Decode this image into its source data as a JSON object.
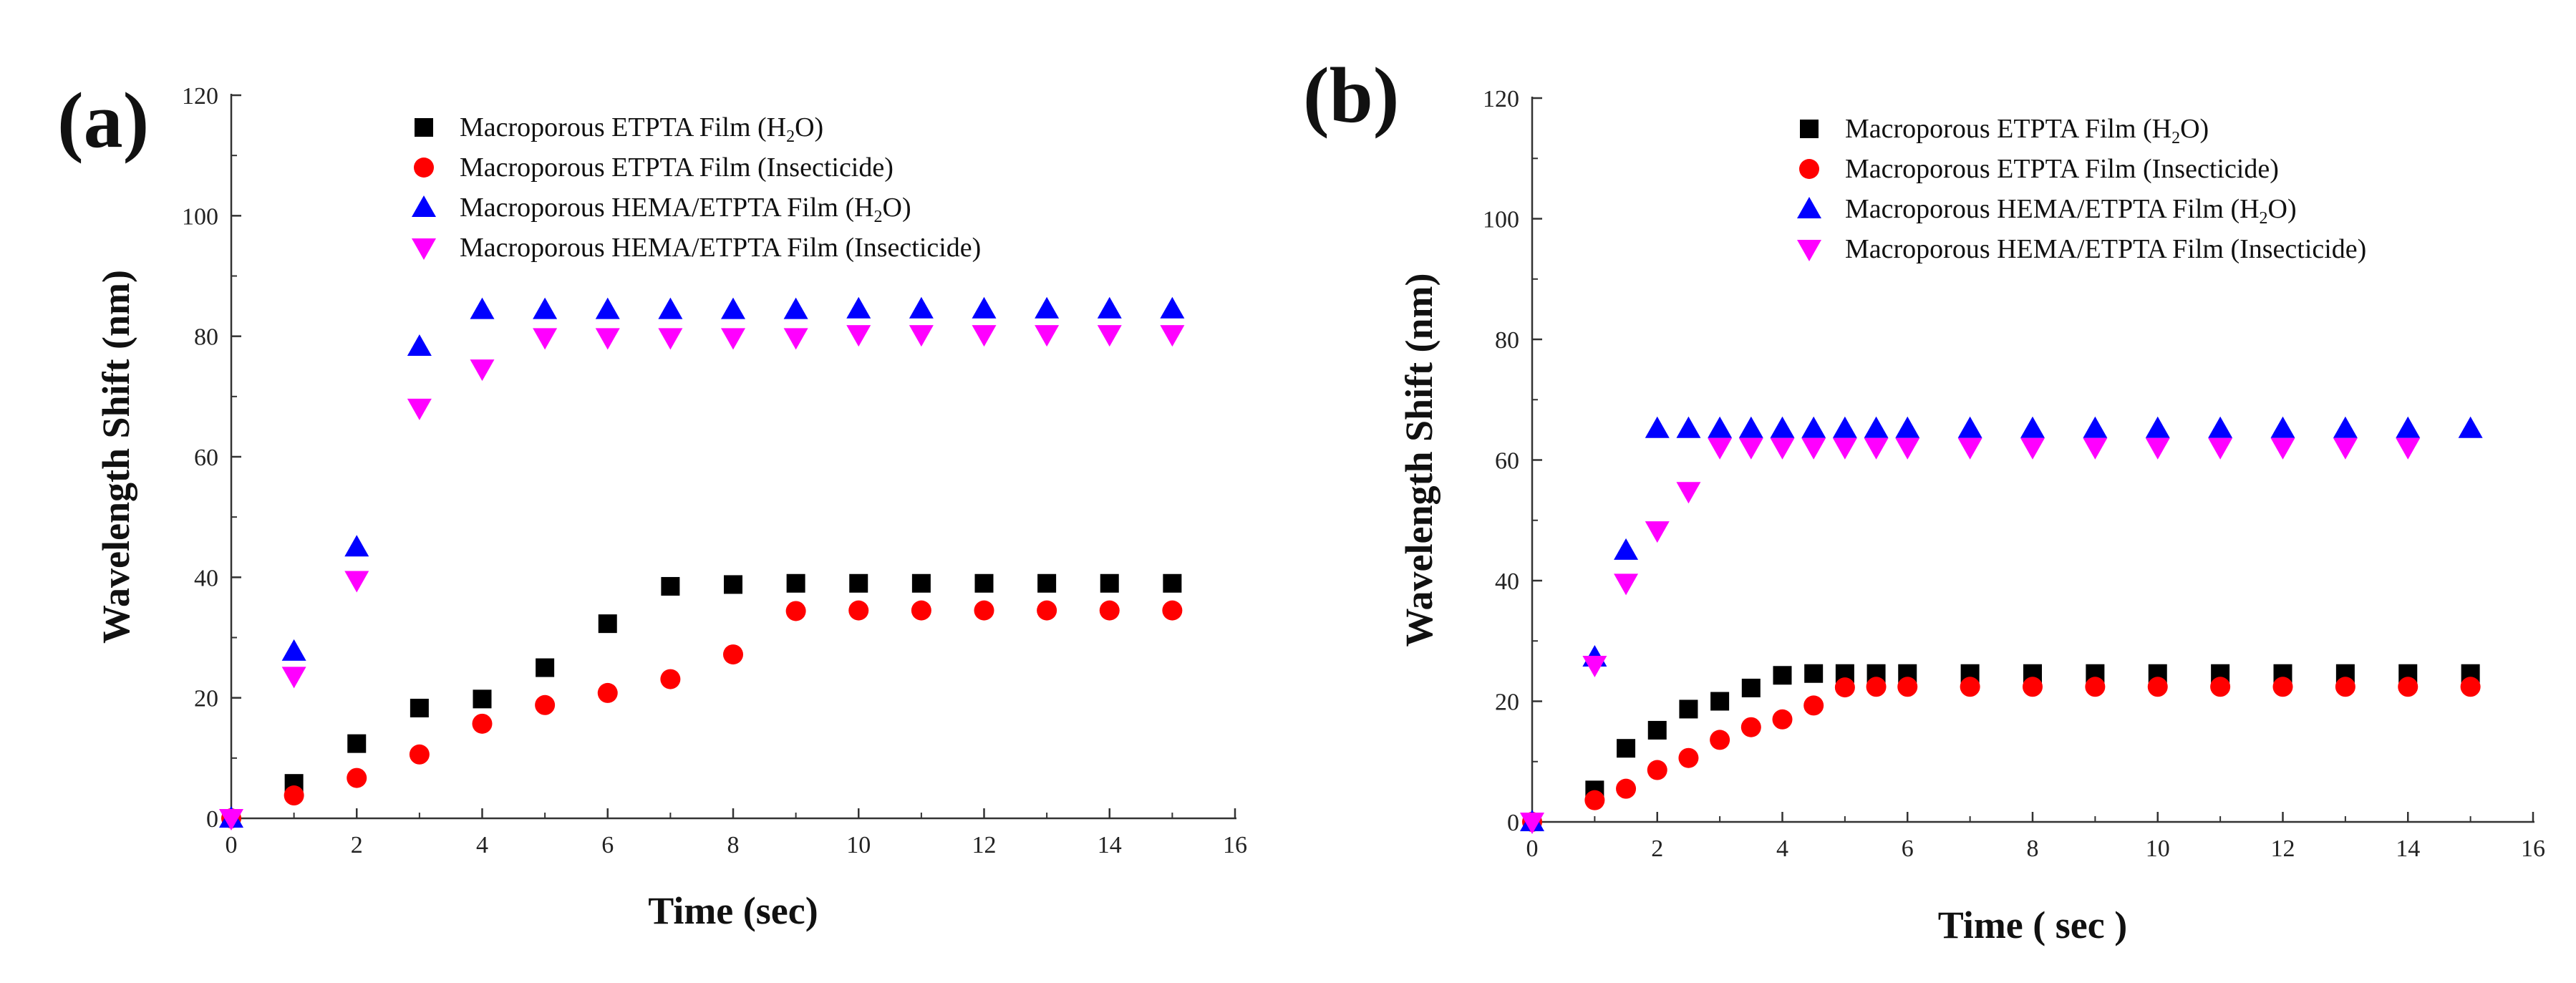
{
  "chart_data": [
    {
      "type": "scatter",
      "panel_label": "(a)",
      "xlabel": "Time (sec)",
      "ylabel": "Wavelength Shift (nm)",
      "xlim": [
        0,
        16
      ],
      "ylim": [
        0,
        120
      ],
      "xticks": [
        0,
        2,
        4,
        6,
        8,
        10,
        12,
        14,
        16
      ],
      "yticks": [
        0,
        20,
        40,
        60,
        80,
        100,
        120
      ],
      "legend_position": "top-right",
      "series": [
        {
          "name": "Macroporous ETPTA Film (H₂O)",
          "marker": "square",
          "color": "#000000",
          "x": [
            0,
            1,
            2,
            3,
            4,
            5,
            6,
            7,
            8,
            9,
            10,
            11,
            12,
            13,
            14,
            15
          ],
          "y": [
            0,
            5.8,
            12.4,
            18.3,
            19.8,
            25,
            32.3,
            38.5,
            38.8,
            39,
            39,
            39,
            39,
            39,
            39,
            39
          ]
        },
        {
          "name": "Macroporous ETPTA Film (Insecticide)",
          "marker": "circle",
          "color": "#ff0000",
          "x": [
            0,
            1,
            2,
            3,
            4,
            5,
            6,
            7,
            8,
            9,
            10,
            11,
            12,
            13,
            14,
            15
          ],
          "y": [
            0,
            3.8,
            6.7,
            10.6,
            15.7,
            18.8,
            20.8,
            23.1,
            27.2,
            34.4,
            34.5,
            34.5,
            34.5,
            34.5,
            34.5,
            34.5
          ]
        },
        {
          "name": "Macroporous HEMA/ETPTA Film (H₂O)",
          "marker": "triangle-up",
          "color": "#0000ff",
          "x": [
            0,
            1,
            2,
            3,
            4,
            5,
            6,
            7,
            8,
            9,
            10,
            11,
            12,
            13,
            14,
            15
          ],
          "y": [
            0,
            27.7,
            45,
            78.3,
            84.4,
            84.4,
            84.4,
            84.4,
            84.4,
            84.4,
            84.5,
            84.5,
            84.5,
            84.5,
            84.5,
            84.5
          ]
        },
        {
          "name": "Macroporous HEMA/ETPTA Film (Insecticide)",
          "marker": "triangle-down",
          "color": "#ff00ff",
          "x": [
            0,
            1,
            2,
            3,
            4,
            5,
            6,
            7,
            8,
            9,
            10,
            11,
            12,
            13,
            14,
            15
          ],
          "y": [
            0,
            23.6,
            39.5,
            68.1,
            74.6,
            79.8,
            79.8,
            79.8,
            79.8,
            79.8,
            80.3,
            80.3,
            80.3,
            80.3,
            80.3,
            80.3
          ]
        }
      ]
    },
    {
      "type": "scatter",
      "panel_label": "(b)",
      "xlabel": "Time ( sec )",
      "ylabel": "Wavelength Shift (nm)",
      "xlim": [
        0,
        16
      ],
      "ylim": [
        0,
        120
      ],
      "xticks": [
        0,
        2,
        4,
        6,
        8,
        10,
        12,
        14,
        16
      ],
      "yticks": [
        0,
        20,
        40,
        60,
        80,
        100,
        120
      ],
      "legend_position": "top-right",
      "series": [
        {
          "name": "Macroporous ETPTA Film (H₂O)",
          "marker": "square",
          "color": "#000000",
          "x": [
            0,
            1,
            1.5,
            2,
            2.5,
            3,
            3.5,
            4,
            4.5,
            5,
            5.5,
            6,
            7,
            8,
            9,
            10,
            11,
            12,
            13,
            14,
            15
          ],
          "y": [
            0,
            5.3,
            12.2,
            15.2,
            18.7,
            20,
            22.2,
            24.3,
            24.6,
            24.6,
            24.6,
            24.6,
            24.6,
            24.6,
            24.6,
            24.6,
            24.6,
            24.6,
            24.6,
            24.6,
            24.6
          ]
        },
        {
          "name": "Macroporous ETPTA Film (Insecticide)",
          "marker": "circle",
          "color": "#ff0000",
          "x": [
            0,
            1,
            1.5,
            2,
            2.5,
            3,
            3.5,
            4,
            4.5,
            5,
            5.5,
            6,
            7,
            8,
            9,
            10,
            11,
            12,
            13,
            14,
            15
          ],
          "y": [
            0,
            3.6,
            5.5,
            8.6,
            10.6,
            13.6,
            15.7,
            17,
            19.3,
            22.3,
            22.4,
            22.4,
            22.4,
            22.4,
            22.4,
            22.4,
            22.4,
            22.4,
            22.4,
            22.4,
            22.4
          ]
        },
        {
          "name": "Macroporous HEMA/ETPTA Film (H₂O)",
          "marker": "triangle-up",
          "color": "#0000ff",
          "x": [
            0,
            1,
            1.5,
            2,
            2.5,
            3,
            3.5,
            4,
            4.5,
            5,
            5.5,
            6,
            7,
            8,
            9,
            10,
            11,
            12,
            13,
            14,
            15
          ],
          "y": [
            0,
            27.3,
            45,
            65.2,
            65.2,
            65.2,
            65.2,
            65.2,
            65.2,
            65.2,
            65.2,
            65.2,
            65.2,
            65.2,
            65.2,
            65.2,
            65.2,
            65.2,
            65.2,
            65.2,
            65.2
          ]
        },
        {
          "name": "Macroporous HEMA/ETPTA Film (Insecticide)",
          "marker": "triangle-down",
          "color": "#ff00ff",
          "x": [
            0,
            1,
            1.5,
            2,
            2.5,
            3,
            3.5,
            4,
            4.5,
            5,
            5.5,
            6,
            7,
            8,
            9,
            10,
            11,
            12,
            13,
            14
          ],
          "y": [
            0,
            26,
            39.6,
            48.3,
            54.8,
            62.1,
            62.1,
            62.1,
            62.1,
            62.1,
            62.1,
            62.1,
            62.1,
            62.1,
            62.1,
            62.1,
            62.1,
            62.1,
            62.1,
            62.1
          ]
        }
      ]
    }
  ]
}
